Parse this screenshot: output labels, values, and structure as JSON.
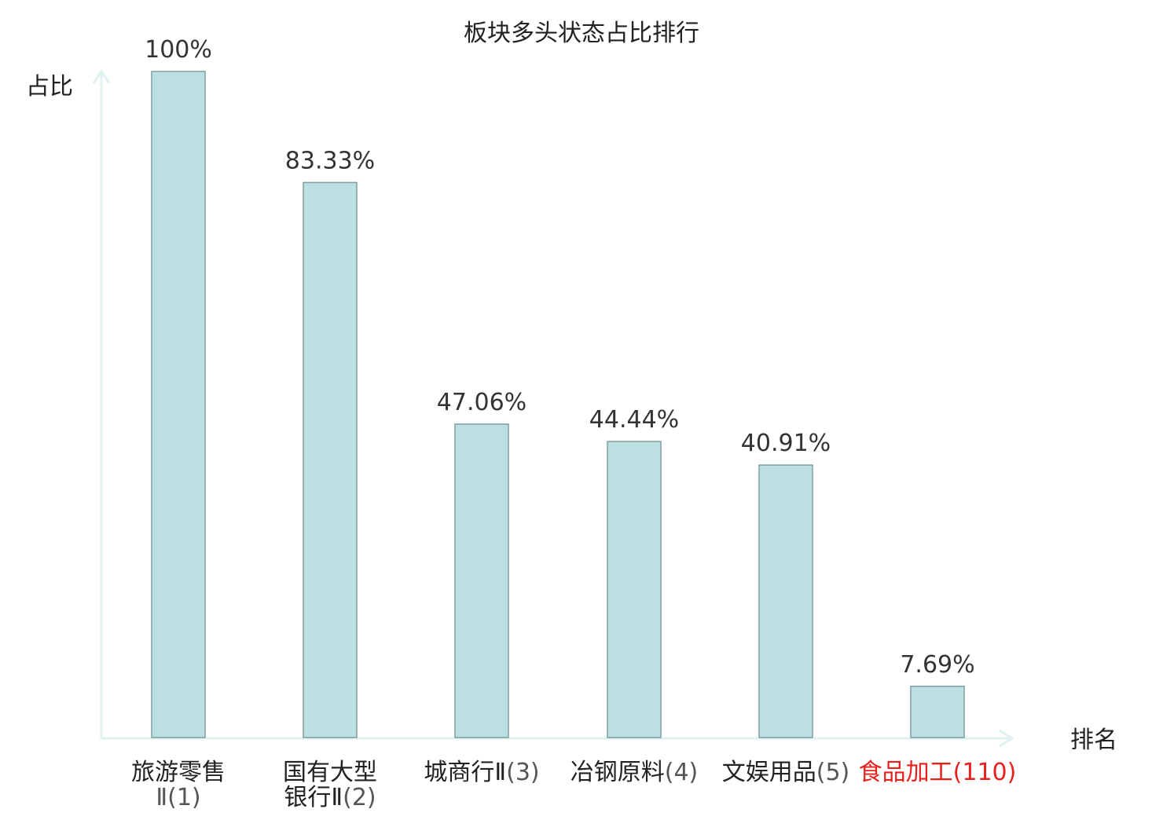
{
  "chart_data": {
    "type": "bar",
    "title": "板块多头状态占比排行",
    "ylabel": "占比",
    "xlabel": "排名",
    "ylim": [
      0,
      100
    ],
    "grid": false,
    "categories": [
      {
        "name": [
          "旅游零售"
        ],
        "rank": "Ⅱ(1)",
        "highlight": false
      },
      {
        "name": [
          "国有大型"
        ],
        "rank": "银行Ⅱ(2)",
        "highlight": false
      },
      {
        "name": [
          "城商行Ⅱ"
        ],
        "rank": "(3)",
        "highlight": false
      },
      {
        "name": [
          "冶钢原料"
        ],
        "rank": "(4)",
        "highlight": false
      },
      {
        "name": [
          "文娱用品"
        ],
        "rank": "(5)",
        "highlight": false
      },
      {
        "name": [
          "食品加工"
        ],
        "rank": "(110)",
        "highlight": true
      }
    ],
    "series": [
      {
        "values": [
          100,
          83.33,
          47.06,
          44.44,
          40.91,
          7.69
        ],
        "data_labels": [
          "100%",
          "83.33%",
          "47.06%",
          "44.44%",
          "40.91%",
          "7.69%"
        ]
      }
    ],
    "colors": {
      "bar_fill": "#bce0e2",
      "bar_stroke": "#7f9ea2",
      "axis": "#e0f2ef",
      "text": "#222222",
      "value_text": "#333333",
      "rank_text": "#555555",
      "highlight": "#e8211c"
    }
  }
}
